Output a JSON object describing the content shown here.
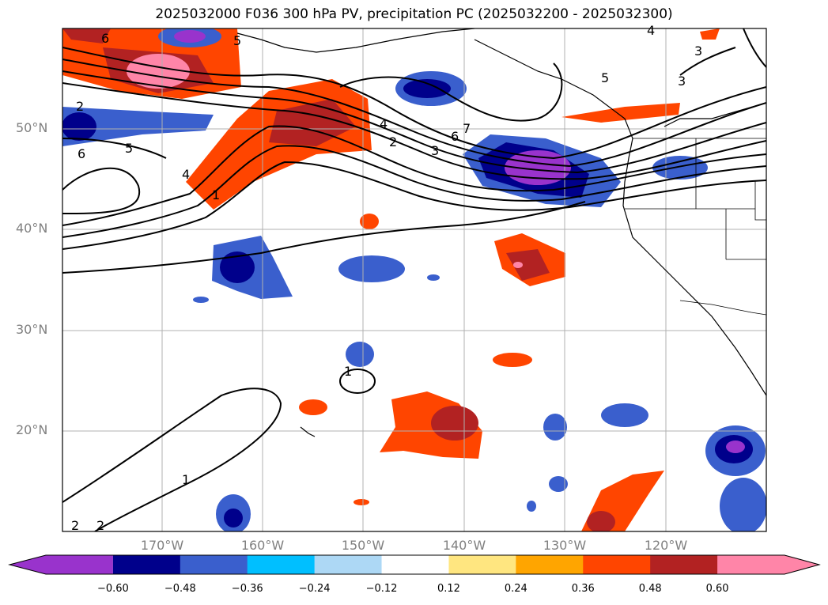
{
  "title": "2025032000 F036 300 hPa PV, precipitation PC (2025032200 - 2025032300)",
  "lat_labels": [
    "50°N",
    "40°N",
    "30°N",
    "20°N"
  ],
  "lon_labels": [
    "170°W",
    "160°W",
    "150°W",
    "140°W",
    "130°W",
    "120°W"
  ],
  "colorbar": {
    "ticks": [
      "−0.60",
      "−0.48",
      "−0.36",
      "−0.24",
      "−0.12",
      "0.12",
      "0.24",
      "0.36",
      "0.48",
      "0.60"
    ],
    "colors": [
      "#9933cc",
      "#00008b",
      "#3a5fcd",
      "#00bfff",
      "#add8f5",
      "#ffffff",
      "#ffe680",
      "#ffa500",
      "#ff4500",
      "#b22222",
      "#ff85a8"
    ]
  },
  "contour_labels": [
    "6",
    "5",
    "2",
    "6",
    "5",
    "4",
    "1",
    "4",
    "2",
    "3",
    "6",
    "7",
    "5",
    "3",
    "3",
    "4",
    "1",
    "1",
    "2",
    "2"
  ]
}
